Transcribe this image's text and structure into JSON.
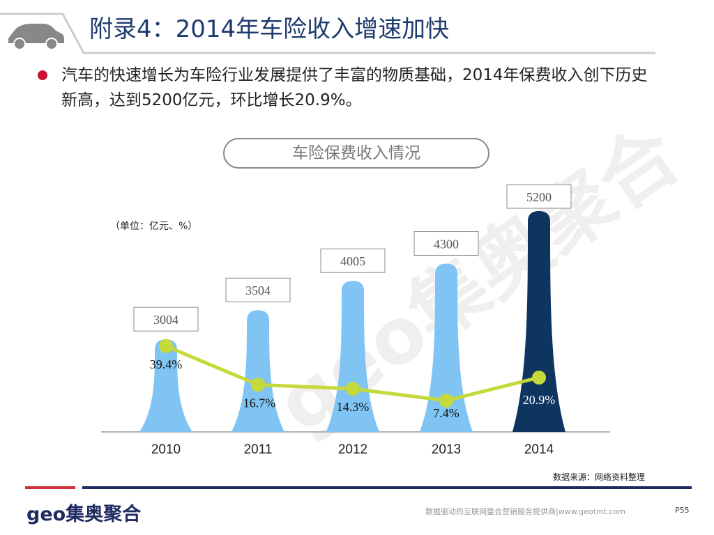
{
  "header": {
    "title": "附录4：2014年车险收入增速加快"
  },
  "bullet": "汽车的快速增长为车险行业发展提供了丰富的物质基础，2014年保费收入创下历史新高，达到5200亿元，环比增长20.9%。",
  "watermark": "geo集奥聚合",
  "unit_label": "（单位：亿元、%）",
  "source": "数据来源：网络资料整理",
  "footer": {
    "logo": "geo集奥聚合",
    "tagline": "数据驱动的互联网整合营销服务提供商|www.geotmt.com",
    "page": "P55"
  },
  "colors": {
    "bar": "#7fc4f2",
    "bar_highlight": "#0d3560",
    "line": "#c5d93a",
    "title": "#1f3b6e",
    "bullet": "#c8102e"
  },
  "chart_data": {
    "type": "bar",
    "title": "车险保费收入情况",
    "categories": [
      "2010",
      "2011",
      "2012",
      "2013",
      "2014"
    ],
    "series": [
      {
        "type": "bar",
        "values": [
          3004,
          3504,
          4005,
          4300,
          5200
        ],
        "labels": [
          "3004",
          "3504",
          "4005",
          "4300",
          "5200"
        ]
      },
      {
        "type": "line",
        "values": [
          39.4,
          16.7,
          14.3,
          7.4,
          20.9
        ],
        "labels": [
          "39.4%",
          "16.7%",
          "14.3%",
          "7.4%",
          "20.9%"
        ]
      }
    ],
    "ylim": [
      1420,
      5200
    ],
    "grid": false
  }
}
